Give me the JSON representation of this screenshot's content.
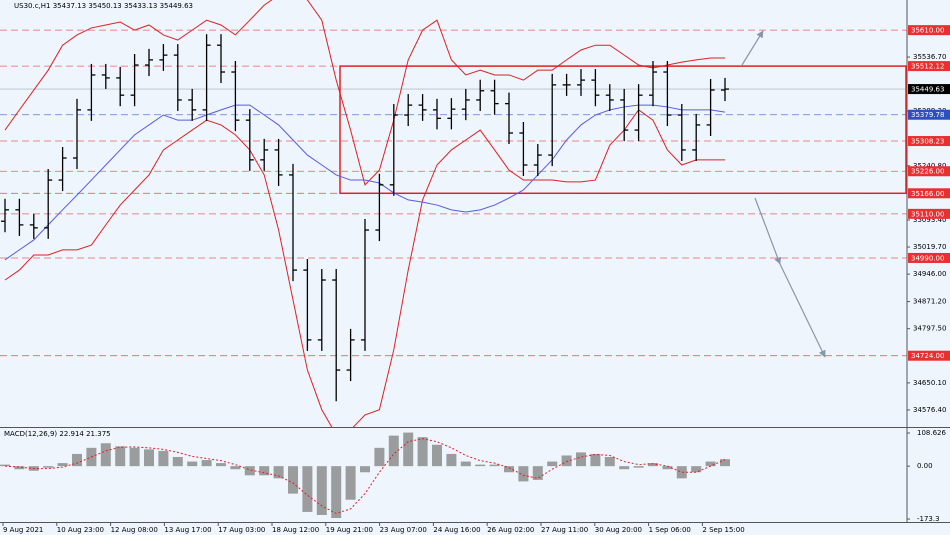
{
  "chart_data": [
    {
      "type": "ohlc",
      "title": "US30.c,H1 35437.13 35450.13 35433.13 35449.63",
      "color": "#000000",
      "open": [
        35090,
        35121,
        35080,
        35072,
        35202,
        35262,
        35393,
        35488,
        35480,
        35433,
        35515,
        35529,
        35542,
        35420,
        35393,
        35569,
        35496,
        35365,
        35257,
        35284,
        35216,
        34957,
        34767,
        34930,
        34685,
        34767,
        35066,
        35189,
        35379,
        35406,
        35393,
        35370,
        35395,
        35420,
        35445,
        35410,
        35330,
        35243,
        35270,
        35461,
        35461,
        35474,
        35433,
        35420,
        35338,
        35433,
        35496,
        35379,
        35284,
        35352,
        35447
      ],
      "high": [
        35151,
        35151,
        35110,
        35232,
        35292,
        35423,
        35518,
        35518,
        35510,
        35545,
        35559,
        35572,
        35572,
        35450,
        35599,
        35599,
        35526,
        35395,
        35314,
        35314,
        35246,
        34987,
        34960,
        34960,
        34797,
        35096,
        35219,
        35409,
        35436,
        35436,
        35423,
        35425,
        35450,
        35475,
        35475,
        35440,
        35360,
        35300,
        35491,
        35491,
        35504,
        35504,
        35463,
        35450,
        35463,
        35526,
        35526,
        35409,
        35382,
        35477,
        35480
      ],
      "low": [
        35060,
        35050,
        35042,
        35042,
        35172,
        35232,
        35363,
        35450,
        35403,
        35403,
        35485,
        35499,
        35390,
        35363,
        35363,
        35466,
        35335,
        35227,
        35227,
        35186,
        34927,
        34737,
        34737,
        34600,
        34655,
        34737,
        35036,
        35159,
        35349,
        35363,
        35340,
        35340,
        35365,
        35390,
        35380,
        35300,
        35213,
        35213,
        35240,
        35431,
        35431,
        35403,
        35390,
        35308,
        35308,
        35403,
        35349,
        35254,
        35254,
        35322,
        35417
      ],
      "close": [
        35121,
        35080,
        35072,
        35202,
        35262,
        35393,
        35488,
        35480,
        35433,
        35515,
        35529,
        35542,
        35420,
        35393,
        35569,
        35496,
        35365,
        35257,
        35284,
        35216,
        34957,
        34767,
        34930,
        34685,
        34767,
        35066,
        35189,
        35379,
        35406,
        35393,
        35370,
        35395,
        35420,
        35445,
        35410,
        35330,
        35243,
        35270,
        35461,
        35461,
        35474,
        35433,
        35420,
        35338,
        35433,
        35496,
        35379,
        35284,
        35352,
        35447,
        35449.63
      ],
      "overlays": [
        {
          "color": "#e02020",
          "values": [
            35338,
            35393,
            35447,
            35501,
            35569,
            35597,
            35616,
            35624,
            35632,
            35610,
            35624,
            35597,
            35583,
            35610,
            35637,
            35624,
            35597,
            35637,
            35678,
            35705,
            35719,
            35692,
            35637,
            35474,
            35338,
            35189,
            35229,
            35365,
            35529,
            35610,
            35637,
            35529,
            35488,
            35501,
            35488,
            35488,
            35474,
            35501,
            35501,
            35529,
            35556,
            35569,
            35569,
            35542,
            35515,
            35507,
            35515,
            35523,
            35529,
            35534,
            35534
          ]
        },
        {
          "color": "#e02020",
          "values": [
            34930,
            34957,
            34998,
            34998,
            35012,
            35012,
            35025,
            35080,
            35134,
            35175,
            35216,
            35284,
            35311,
            35338,
            35365,
            35352,
            35325,
            35284,
            35216,
            35066,
            34876,
            34685,
            34577,
            34509,
            34522,
            34563,
            34577,
            34740,
            34957,
            35148,
            35243,
            35284,
            35311,
            35338,
            35284,
            35229,
            35202,
            35202,
            35202,
            35197,
            35197,
            35202,
            35297,
            35338,
            35393,
            35365,
            35284,
            35243,
            35257,
            35257,
            35257
          ]
        },
        {
          "color": "#5a5ae0",
          "values": [
            34985,
            35012,
            35039,
            35080,
            35121,
            35161,
            35202,
            35243,
            35284,
            35325,
            35352,
            35379,
            35365,
            35365,
            35379,
            35393,
            35406,
            35406,
            35379,
            35352,
            35311,
            35270,
            35243,
            35216,
            35202,
            35202,
            35194,
            35167,
            35148,
            35142,
            35134,
            35121,
            35115,
            35121,
            35134,
            35153,
            35175,
            35216,
            35257,
            35311,
            35352,
            35379,
            35393,
            35401,
            35406,
            35406,
            35401,
            35393,
            35393,
            35393,
            35387
          ]
        }
      ],
      "levels": [
        {
          "value": 35610,
          "label": "35610.00",
          "color": "#e83030"
        },
        {
          "value": 35512.12,
          "label": "35512.12",
          "color": "#e83030"
        },
        {
          "value": 35449.63,
          "label": "35449.63",
          "color": "#000000"
        },
        {
          "value": 35379.78,
          "label": "35379.78",
          "color": "#2c4fc4"
        },
        {
          "value": 35308.23,
          "label": "35308.23",
          "color": "#e83030"
        },
        {
          "value": 35226,
          "label": "35226.00",
          "color": "#e83030"
        },
        {
          "value": 35166,
          "label": "35166.00",
          "color": "#e83030"
        },
        {
          "value": 35110,
          "label": "35110.00",
          "color": "#e83030"
        },
        {
          "value": 34990,
          "label": "34990.00",
          "color": "#e83030"
        },
        {
          "value": 34724,
          "label": "34724.00",
          "color": "#e83030"
        }
      ],
      "ylim": [
        34530,
        35692
      ],
      "yticks": [
        {
          "value": 35536.7,
          "label": "35536.70"
        },
        {
          "value": 35389.3,
          "label": "35389.30"
        },
        {
          "value": 35240.8,
          "label": "35240.80"
        },
        {
          "value": 35093.4,
          "label": "35093.40"
        },
        {
          "value": 35019.7,
          "label": "35019.70"
        },
        {
          "value": 34946,
          "label": "34946.00"
        },
        {
          "value": 34871.2,
          "label": "34871.20"
        },
        {
          "value": 34797.5,
          "label": "34797.50"
        },
        {
          "value": 34650.1,
          "label": "34650.10"
        },
        {
          "value": 34576.4,
          "label": "34576.40"
        }
      ],
      "x_labels": [
        "9 Aug 2021",
        "10 Aug 23:00",
        "12 Aug 08:00",
        "13 Aug 17:00",
        "17 Aug 03:00",
        "18 Aug 12:00",
        "19 Aug 21:00",
        "23 Aug 07:00",
        "24 Aug 16:00",
        "26 Aug 02:00",
        "27 Aug 11:00",
        "30 Aug 20:00",
        "1 Sep 06:00",
        "2 Sep 15:00"
      ]
    },
    {
      "type": "bar",
      "title": "MACD(12,26,9) 22.914 21.375",
      "color": "#8c8c8c",
      "values": [
        5,
        -10,
        -15,
        -5,
        10,
        40,
        60,
        75,
        65,
        60,
        55,
        50,
        30,
        15,
        20,
        10,
        -10,
        -30,
        -30,
        -40,
        -90,
        -150,
        -160,
        -170,
        -110,
        -20,
        60,
        100,
        110,
        95,
        70,
        40,
        15,
        5,
        5,
        -20,
        -50,
        -45,
        15,
        35,
        45,
        40,
        30,
        -10,
        -5,
        10,
        -10,
        -40,
        -20,
        15,
        22.914
      ],
      "signal": {
        "color": "#e02020",
        "values": [
          0,
          -3,
          -8,
          -8,
          -3,
          10,
          30,
          50,
          62,
          63,
          60,
          55,
          45,
          32,
          25,
          18,
          5,
          -12,
          -22,
          -32,
          -55,
          -95,
          -130,
          -155,
          -140,
          -90,
          -20,
          40,
          80,
          90,
          80,
          60,
          35,
          18,
          10,
          -5,
          -30,
          -40,
          -10,
          15,
          30,
          38,
          35,
          15,
          5,
          8,
          0,
          -20,
          -20,
          0,
          21.375
        ]
      },
      "ylim": [
        -183,
        125
      ],
      "yticks": [
        108.626,
        {
          "value": 0,
          "label": "0.00"
        },
        -173.3
      ]
    }
  ]
}
